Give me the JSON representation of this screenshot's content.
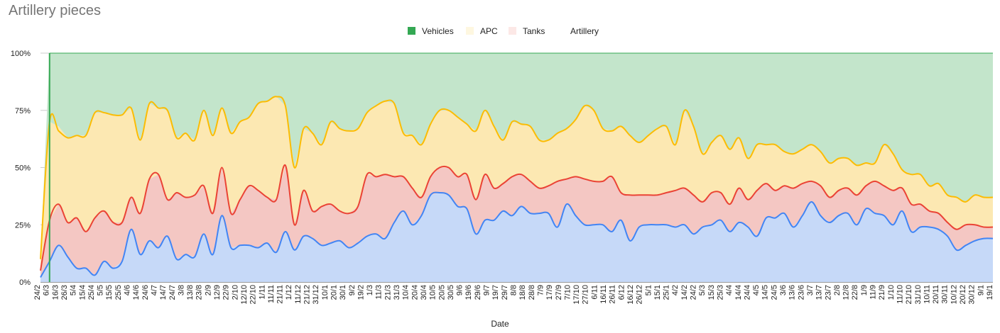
{
  "chart_data": {
    "type": "area",
    "stacked": "percent",
    "title": "Artillery pieces",
    "xlabel": "Date",
    "ylabel": "",
    "ylim": [
      0,
      100
    ],
    "y_ticks": [
      "0%",
      "25%",
      "50%",
      "75%",
      "100%"
    ],
    "grid": true,
    "legend_position": "top",
    "x_tick_labels": [
      "24/2",
      "6/3",
      "16/3",
      "26/3",
      "5/4",
      "15/4",
      "25/4",
      "5/5",
      "15/5",
      "25/5",
      "4/6",
      "14/6",
      "24/6",
      "4/7",
      "14/7",
      "24/7",
      "3/8",
      "13/8",
      "23/8",
      "2/9",
      "12/9",
      "22/9",
      "2/10",
      "12/10",
      "22/10",
      "1/11",
      "11/11",
      "21/11",
      "1/12",
      "11/12",
      "21/12",
      "31/12",
      "10/1",
      "20/1",
      "30/1",
      "9/2",
      "19/2",
      "1/3",
      "11/3",
      "21/3",
      "31/3",
      "10/4",
      "20/4",
      "30/4",
      "10/5",
      "20/5",
      "30/5",
      "9/6",
      "19/6",
      "29/6",
      "9/7",
      "19/7",
      "29/7",
      "8/8",
      "18/8",
      "28/8",
      "7/9",
      "17/9",
      "27/9",
      "7/10",
      "17/10",
      "27/10",
      "6/11",
      "16/11",
      "26/11",
      "6/12",
      "16/12",
      "26/12",
      "5/1",
      "15/1",
      "25/1",
      "4/2",
      "14/2",
      "24/2",
      "5/3",
      "15/3",
      "25/3",
      "4/4",
      "14/4",
      "24/4",
      "4/5",
      "14/5",
      "24/5",
      "3/6",
      "13/6",
      "23/6",
      "3/7",
      "13/7",
      "23/7",
      "2/8",
      "12/8",
      "22/8",
      "1/9",
      "11/9",
      "21/9",
      "1/10",
      "11/10",
      "21/10",
      "31/10",
      "10/11",
      "20/11",
      "30/11",
      "10/12",
      "20/12",
      "30/12",
      "9/1",
      "19/1"
    ],
    "series": [
      {
        "name": "Vehicles",
        "color": "#34a853",
        "fill": "#c3e5cb",
        "values": [
          0,
          30,
          32,
          37,
          36,
          36,
          26,
          26,
          27,
          27,
          24,
          38,
          22,
          24,
          25,
          37,
          35,
          38,
          25,
          36,
          24,
          35,
          30,
          28,
          22,
          21,
          19,
          23,
          50,
          33,
          35,
          40,
          30,
          33,
          34,
          33,
          26,
          23,
          21,
          22,
          35,
          36,
          40,
          31,
          25,
          25,
          28,
          31,
          34,
          25,
          32,
          38,
          30,
          31,
          32,
          38,
          38,
          35,
          33,
          29,
          23,
          25,
          33,
          34,
          32,
          36,
          39,
          36,
          33,
          32,
          40,
          25,
          32,
          44,
          39,
          36,
          42,
          37,
          46,
          40,
          40,
          40,
          43,
          44,
          42,
          40,
          43,
          48,
          46,
          46,
          49,
          48,
          48,
          40,
          44,
          51,
          53,
          53,
          58,
          57,
          62,
          63,
          65,
          62,
          63,
          63
        ]
      },
      {
        "name": "APC",
        "color": "#fbbc04",
        "fill": "#fce8b2",
        "values": [
          5,
          43,
          34,
          37,
          36,
          42,
          46,
          43,
          47,
          47,
          39,
          32,
          33,
          29,
          39,
          24,
          28,
          24,
          33,
          34,
          26,
          35,
          34,
          30,
          38,
          42,
          45,
          26,
          25,
          27,
          34,
          27,
          36,
          36,
          36,
          34,
          27,
          31,
          32,
          32,
          19,
          23,
          23,
          23,
          25,
          25,
          26,
          22,
          30,
          28,
          27,
          19,
          24,
          22,
          24,
          21,
          20,
          21,
          22,
          25,
          32,
          31,
          23,
          20,
          29,
          26,
          23,
          26,
          29,
          29,
          20,
          34,
          30,
          21,
          22,
          25,
          24,
          22,
          18,
          20,
          17,
          20,
          15,
          15,
          15,
          16,
          15,
          15,
          14,
          13,
          13,
          10,
          8,
          18,
          16,
          8,
          13,
          13,
          11,
          13,
          12,
          14,
          10,
          13,
          13,
          13
        ]
      },
      {
        "name": "Tanks",
        "color": "#ea4335",
        "fill": "#f4c7c3",
        "values": [
          3,
          18,
          18,
          15,
          22,
          16,
          25,
          22,
          20,
          17,
          14,
          18,
          27,
          32,
          16,
          29,
          25,
          27,
          21,
          18,
          21,
          15,
          20,
          26,
          25,
          20,
          23,
          29,
          11,
          20,
          12,
          17,
          17,
          13,
          15,
          16,
          27,
          25,
          28,
          20,
          15,
          16,
          8,
          8,
          11,
          12,
          13,
          15,
          15,
          20,
          14,
          12,
          17,
          14,
          14,
          11,
          12,
          20,
          11,
          17,
          20,
          19,
          19,
          24,
          12,
          20,
          14,
          13,
          13,
          14,
          16,
          16,
          17,
          11,
          14,
          12,
          12,
          15,
          12,
          20,
          15,
          12,
          12,
          17,
          14,
          9,
          13,
          11,
          11,
          11,
          13,
          10,
          14,
          13,
          15,
          10,
          12,
          10,
          7,
          7,
          6,
          9,
          9,
          7,
          5,
          5
        ]
      },
      {
        "name": "Artillery",
        "color": "#4285f4",
        "fill": "#c6d9f8",
        "values": [
          2,
          9,
          16,
          11,
          6,
          6,
          3,
          9,
          6,
          9,
          23,
          12,
          18,
          15,
          20,
          10,
          12,
          11,
          21,
          12,
          29,
          15,
          16,
          16,
          15,
          17,
          13,
          22,
          14,
          20,
          19,
          16,
          17,
          18,
          15,
          17,
          20,
          21,
          19,
          26,
          31,
          25,
          29,
          38,
          39,
          38,
          33,
          32,
          21,
          27,
          27,
          31,
          29,
          33,
          30,
          30,
          30,
          24,
          34,
          29,
          25,
          25,
          25,
          22,
          27,
          18,
          24,
          25,
          25,
          25,
          24,
          25,
          21,
          24,
          25,
          27,
          22,
          26,
          24,
          20,
          28,
          28,
          30,
          24,
          29,
          35,
          29,
          26,
          29,
          30,
          25,
          32,
          30,
          29,
          25,
          31,
          22,
          24,
          24,
          23,
          20,
          14,
          16,
          18,
          19,
          19
        ]
      }
    ],
    "line_values": {
      "artillery": [
        2,
        9,
        16,
        11,
        6,
        6,
        3,
        9,
        6,
        9,
        23,
        12,
        18,
        15,
        20,
        10,
        12,
        11,
        21,
        12,
        29,
        15,
        16,
        16,
        15,
        17,
        13,
        22,
        14,
        20,
        19,
        16,
        17,
        18,
        15,
        17,
        20,
        21,
        19,
        26,
        31,
        25,
        29,
        38,
        39,
        38,
        33,
        32,
        21,
        27,
        27,
        31,
        29,
        33,
        30,
        30,
        30,
        24,
        34,
        29,
        25,
        25,
        25,
        22,
        27,
        18,
        24,
        25,
        25,
        25,
        24,
        25,
        21,
        24,
        25,
        27,
        22,
        26,
        24,
        20,
        28,
        28,
        30,
        24,
        29,
        35,
        29,
        26,
        29,
        30,
        25,
        32,
        30,
        29,
        25,
        31,
        22,
        24,
        24,
        23,
        20,
        14,
        16,
        18,
        19,
        19
      ],
      "tanks_cum": [
        5,
        27,
        34,
        26,
        28,
        22,
        28,
        31,
        26,
        26,
        37,
        30,
        45,
        47,
        36,
        39,
        37,
        38,
        42,
        30,
        50,
        30,
        36,
        42,
        40,
        37,
        36,
        51,
        25,
        40,
        31,
        33,
        34,
        31,
        30,
        33,
        47,
        46,
        47,
        46,
        46,
        41,
        37,
        46,
        50,
        50,
        46,
        47,
        36,
        47,
        41,
        43,
        46,
        47,
        44,
        41,
        42,
        44,
        45,
        46,
        45,
        44,
        44,
        46,
        39,
        38,
        38,
        38,
        38,
        39,
        40,
        41,
        38,
        35,
        39,
        39,
        34,
        41,
        36,
        40,
        43,
        40,
        42,
        41,
        43,
        44,
        42,
        37,
        40,
        41,
        38,
        42,
        44,
        42,
        40,
        41,
        34,
        34,
        31,
        30,
        26,
        23,
        25,
        25,
        24,
        24
      ],
      "apc_cum": [
        10,
        70,
        66,
        63,
        64,
        64,
        74,
        74,
        73,
        73,
        76,
        62,
        78,
        76,
        75,
        63,
        65,
        62,
        75,
        64,
        76,
        65,
        70,
        72,
        78,
        79,
        81,
        77,
        50,
        67,
        65,
        60,
        70,
        67,
        66,
        67,
        74,
        77,
        79,
        78,
        65,
        64,
        60,
        69,
        75,
        75,
        72,
        69,
        66,
        75,
        68,
        62,
        70,
        69,
        68,
        62,
        62,
        65,
        67,
        71,
        77,
        75,
        67,
        66,
        68,
        64,
        61,
        64,
        67,
        68,
        60,
        75,
        68,
        56,
        61,
        64,
        58,
        63,
        54,
        60,
        60,
        60,
        57,
        56,
        58,
        60,
        57,
        52,
        54,
        54,
        51,
        52,
        52,
        60,
        56,
        49,
        47,
        47,
        42,
        43,
        38,
        37,
        35,
        38,
        37,
        37
      ]
    }
  }
}
